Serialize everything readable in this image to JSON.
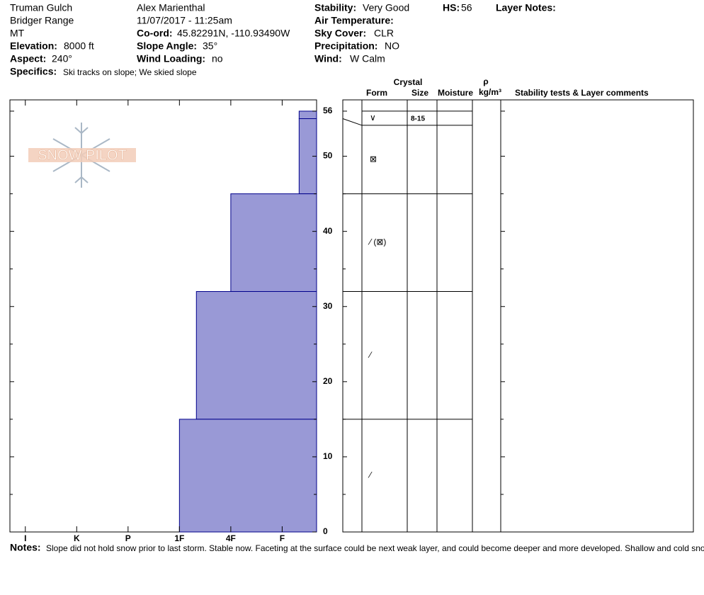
{
  "header": {
    "location": "Truman Gulch",
    "range": "Bridger Range",
    "state": "MT",
    "elevation": {
      "label": "Elevation:",
      "value": "8000 ft"
    },
    "aspect": {
      "label": "Aspect:",
      "value": "240°"
    },
    "specifics": {
      "label": "Specifics:",
      "value": "Ski tracks on slope; We skied slope"
    },
    "observer": "Alex Marienthal",
    "datetime": "11/07/2017 - 11:25am",
    "coord": {
      "label": "Co-ord:",
      "value": "45.82291N, -110.93490W"
    },
    "slope_angle": {
      "label": "Slope Angle:",
      "value": "35°"
    },
    "wind_loading": {
      "label": "Wind Loading:",
      "value": "no"
    },
    "stability": {
      "label": "Stability:",
      "value": "Very Good"
    },
    "air_temperature": {
      "label": "Air Temperature:"
    },
    "sky_cover": {
      "label": "Sky Cover:",
      "value": "CLR"
    },
    "precipitation": {
      "label": "Precipitation:",
      "value": "NO"
    },
    "wind": {
      "label": "Wind:",
      "value": "W Calm"
    },
    "hs": {
      "label": "HS:",
      "value": "56"
    },
    "layer_notes": {
      "label": "Layer Notes:"
    },
    "logo": "SNOW PILOT"
  },
  "table_header": {
    "crystal": "Crystal",
    "form": "Form",
    "size": "Size",
    "moisture": "Moisture",
    "rho": "ρ",
    "density_unit": "kg/m³",
    "comments": "Stability tests & Layer comments"
  },
  "chart_data": {
    "type": "bar",
    "orientation": "horizontal",
    "color": "#9999d6",
    "top": [
      56,
      55,
      45,
      32,
      15
    ],
    "bottom": [
      55,
      45,
      32,
      15,
      0
    ],
    "values": [
      0.67,
      0.67,
      2,
      2.67,
      3
    ],
    "forms": [
      "∨",
      "⊠",
      "⁄ (⊠)",
      "⁄",
      "⁄"
    ],
    "sizes": [
      "8-15",
      null,
      null,
      null,
      null
    ],
    "xlim": [
      6.3,
      0.33
    ],
    "xticks": [
      {
        "value": 6,
        "label": "I"
      },
      {
        "value": 5,
        "label": "K"
      },
      {
        "value": 4,
        "label": "P"
      },
      {
        "value": 3,
        "label": "1F"
      },
      {
        "value": 2,
        "label": "4F"
      },
      {
        "value": 1,
        "label": "F"
      }
    ],
    "ylim": [
      0,
      57.5
    ],
    "yticks": [
      0,
      10,
      20,
      30,
      40,
      50,
      56
    ],
    "minor_yticks": [
      5,
      15,
      25,
      35,
      45
    ]
  },
  "notes": {
    "label": "Notes:",
    "value": "Slope did not hold snow prior to last storm. Stable now. Faceting at the surface could be next weak layer, and could become deeper and more developed. Shallow and cold snowpack."
  }
}
